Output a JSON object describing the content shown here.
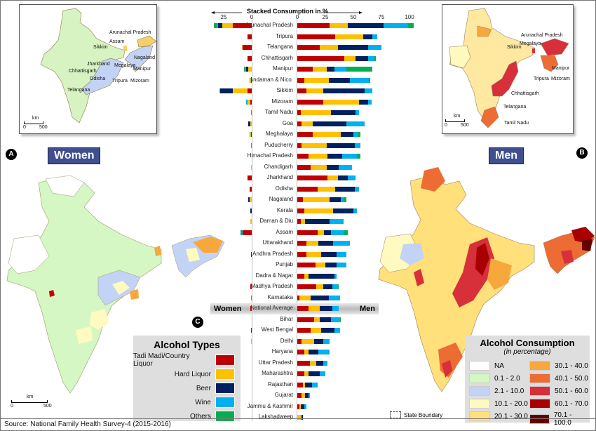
{
  "panels": {
    "a_label": "A",
    "b_label": "B",
    "c_label": "C",
    "women_title": "Women",
    "men_title": "Men"
  },
  "inset_women": {
    "labels": [
      "Arunachal Pradesh",
      "Assam",
      "Sikkim",
      "Nagaland",
      "Jharkhand",
      "Megalaya",
      "Chhattisgarh",
      "Manipur",
      "Odisha",
      "Tripura",
      "Mizoram",
      "Telangana"
    ],
    "scale_unit": "km",
    "scale_start": "0",
    "scale_end": "500"
  },
  "inset_men": {
    "labels": [
      "Arunachal Pradesh",
      "Megalaya",
      "Sikkim",
      "Manipur",
      "Tripura",
      "Mizoram",
      "Chhattisgarh",
      "Telangana",
      "Tamil Nadu"
    ],
    "scale_unit": "km",
    "scale_start": "0",
    "scale_end": "500"
  },
  "women_map_scale": {
    "unit": "km",
    "start": "0",
    "end": "500"
  },
  "alcohol_types_legend": {
    "title": "Alcohol Types",
    "items": [
      {
        "label": "Tadi Madi/Country Liquor",
        "color": "#c00000"
      },
      {
        "label": "Hard Liquor",
        "color": "#ffc000"
      },
      {
        "label": "Beer",
        "color": "#002060"
      },
      {
        "label": "Wine",
        "color": "#00b0f0"
      },
      {
        "label": "Others",
        "color": "#00b050"
      }
    ]
  },
  "consumption_legend": {
    "title": "Alcohol Consumption",
    "subtitle": "(in percentage)",
    "items": [
      {
        "label": "NA",
        "color": "#ffffff"
      },
      {
        "label": "0.1 - 2.0",
        "color": "#d4f7c4"
      },
      {
        "label": "2.1 - 10.0",
        "color": "#c3d3f5"
      },
      {
        "label": "10.1 - 20.0",
        "color": "#fffbc0"
      },
      {
        "label": "20.1 - 30.0",
        "color": "#ffe07a"
      },
      {
        "label": "30.1 - 40.0",
        "color": "#f7a83c"
      },
      {
        "label": "40.1 - 50.0",
        "color": "#ec6c34"
      },
      {
        "label": "50.1 - 60.0",
        "color": "#d7303a"
      },
      {
        "label": "60.1 - 70.0",
        "color": "#a80000"
      },
      {
        "label": "70.1 - 100.0",
        "color": "#640000"
      }
    ]
  },
  "state_boundary_label": "State Boundary",
  "source": "Source: National Family Health Survey-4 (2015-2016)",
  "band": {
    "women": "Women",
    "men": "Men"
  },
  "chart_data": {
    "type": "bar",
    "title": "Stacked Consumption in %",
    "orientation": "horizontal-diverging",
    "women_ticks": [
      "25",
      "0"
    ],
    "men_ticks": [
      "0",
      "25",
      "50",
      "75",
      "100"
    ],
    "xlim_women": [
      0,
      35
    ],
    "xlim_men": [
      0,
      110
    ],
    "series_names": [
      "Tadi Madi/Country Liquor",
      "Hard Liquor",
      "Beer",
      "Wine",
      "Others"
    ],
    "series_colors": [
      "#c00000",
      "#ffc000",
      "#002060",
      "#00b0f0",
      "#00b050"
    ],
    "categories": [
      "Arunachal Pradesh",
      "Tripura",
      "Telangana",
      "Chhattisgarh",
      "Manipur",
      "Andaman & Nico.",
      "Sikkim",
      "Mizoram",
      "Tamil Nadu",
      "Goa",
      "Meghalaya",
      "Puducherry",
      "Himachal Pradesh",
      "Chandigarh",
      "Jharkhand",
      "Odisha",
      "Nagaland",
      "Kerala",
      "Daman & Diu",
      "Assam",
      "Uttarakhand",
      "Andhra Pradesh",
      "Punjab",
      "Dadra & Nagar",
      "Madhya Pradesh",
      "Karnataka",
      "National Average",
      "Bihar",
      "West Bengal",
      "Delhi",
      "Haryana",
      "Uttar Pradesh",
      "Maharashtra",
      "Rajasthan",
      "Gujarat",
      "Jammu & Kashmir",
      "Lakshadweep"
    ],
    "men": [
      [
        29,
        16,
        32,
        22,
        5
      ],
      [
        34,
        25,
        8,
        4,
        0
      ],
      [
        20,
        16,
        27,
        12,
        0
      ],
      [
        42,
        10,
        11,
        6,
        1
      ],
      [
        14,
        12,
        7,
        11,
        23
      ],
      [
        6,
        22,
        19,
        17,
        1
      ],
      [
        8,
        15,
        37,
        7,
        0
      ],
      [
        23,
        32,
        8,
        3,
        0
      ],
      [
        3,
        27,
        22,
        3,
        0
      ],
      [
        4,
        10,
        30,
        16,
        0
      ],
      [
        14,
        25,
        11,
        4,
        2
      ],
      [
        4,
        22,
        25,
        5,
        0
      ],
      [
        10,
        17,
        13,
        13,
        3
      ],
      [
        12,
        14,
        11,
        12,
        0
      ],
      [
        27,
        9,
        9,
        6,
        1
      ],
      [
        18,
        16,
        17,
        4,
        0
      ],
      [
        5,
        24,
        10,
        2,
        3
      ],
      [
        6,
        26,
        18,
        3,
        0
      ],
      [
        3,
        4,
        22,
        12,
        0
      ],
      [
        18,
        6,
        6,
        12,
        3
      ],
      [
        8,
        11,
        13,
        15,
        0
      ],
      [
        8,
        13,
        14,
        9,
        0
      ],
      [
        16,
        9,
        10,
        9,
        0
      ],
      [
        6,
        4,
        23,
        2,
        0
      ],
      [
        17,
        6,
        8,
        5,
        1
      ],
      [
        2,
        10,
        16,
        10,
        0
      ],
      [
        10,
        10,
        11,
        6,
        0
      ],
      [
        15,
        5,
        10,
        8,
        1
      ],
      [
        12,
        9,
        12,
        5,
        0
      ],
      [
        4,
        11,
        8,
        6,
        0
      ],
      [
        6,
        4,
        9,
        10,
        0
      ],
      [
        11,
        6,
        6,
        4,
        0
      ],
      [
        6,
        4,
        10,
        5,
        0
      ],
      [
        5,
        2,
        6,
        5,
        0
      ],
      [
        4,
        3,
        3,
        1,
        0
      ],
      [
        2,
        1,
        3,
        2,
        0
      ],
      [
        0,
        4,
        1,
        0,
        0
      ]
    ],
    "women": [
      [
        17,
        9,
        4,
        1,
        3
      ],
      [
        4,
        0,
        0,
        0,
        0
      ],
      [
        8,
        1,
        0,
        0,
        0
      ],
      [
        4,
        0,
        0,
        0,
        0
      ],
      [
        0,
        3,
        2,
        1,
        1
      ],
      [
        0.7,
        0.7,
        0,
        0,
        0.6
      ],
      [
        4,
        13,
        11,
        1,
        0
      ],
      [
        1,
        3,
        0,
        1,
        0
      ],
      [
        0,
        0,
        0,
        0.8,
        0
      ],
      [
        0,
        1,
        2,
        0,
        0
      ],
      [
        1,
        0.5,
        0,
        0.5,
        0
      ],
      [
        0,
        0,
        0,
        0.5,
        0
      ],
      [
        0,
        0,
        0,
        0,
        0
      ],
      [
        0,
        0.5,
        0,
        0,
        0
      ],
      [
        4,
        0,
        0,
        0,
        0
      ],
      [
        2,
        0,
        0,
        0,
        0
      ],
      [
        0,
        2,
        1,
        0,
        0
      ],
      [
        0,
        0,
        1,
        0,
        0
      ],
      [
        0,
        1,
        0,
        0,
        0
      ],
      [
        8,
        0,
        0,
        1,
        1
      ],
      [
        0,
        0,
        0,
        0,
        0
      ],
      [
        0.5,
        0,
        0,
        0,
        0
      ],
      [
        0,
        0,
        0,
        0,
        0
      ],
      [
        0,
        0,
        0,
        0,
        0
      ],
      [
        1,
        0,
        0,
        0,
        0
      ],
      [
        0,
        0,
        0,
        0.5,
        0
      ],
      [
        1,
        0,
        0,
        0,
        0
      ],
      [
        0,
        0,
        0,
        0,
        0
      ],
      [
        0.5,
        0,
        0,
        0,
        0
      ],
      [
        0,
        0.5,
        0,
        0,
        0
      ],
      [
        0,
        0,
        0,
        0,
        0
      ],
      [
        0,
        0,
        0,
        0,
        0
      ],
      [
        0,
        0,
        0,
        0,
        0
      ],
      [
        0,
        0,
        0,
        0,
        0
      ],
      [
        0,
        0,
        0,
        0,
        0
      ],
      [
        0,
        0,
        0,
        0,
        0
      ],
      [
        0,
        0,
        0,
        0,
        0
      ]
    ]
  }
}
